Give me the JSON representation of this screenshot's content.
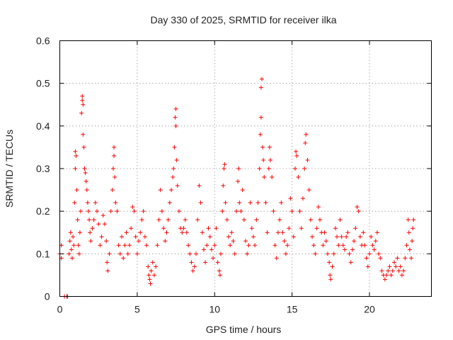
{
  "chart_data": {
    "type": "scatter",
    "title": "Day 330 of 2025, SRMTID for receiver ilka",
    "xlabel": "GPS time / hours",
    "ylabel": "SRMTID / TECUs",
    "xlim": [
      0,
      24
    ],
    "ylim": [
      0,
      0.6
    ],
    "xticks": [
      0,
      5,
      10,
      15,
      20
    ],
    "yticks": [
      0,
      0.1,
      0.2,
      0.3,
      0.4,
      0.5,
      0.6
    ],
    "xtick_labels": [
      "0",
      "5",
      "10",
      "15",
      "20"
    ],
    "ytick_labels": [
      "0",
      "0.1",
      "0.2",
      "0.3",
      "0.4",
      "0.5",
      "0.6"
    ],
    "grid": true,
    "marker": "+",
    "color": "#ff0000",
    "series": [
      {
        "name": "SRMTID",
        "points": [
          [
            0.0,
            0.1
          ],
          [
            0.1,
            0.09
          ],
          [
            0.1,
            0.12
          ],
          [
            0.3,
            0.0
          ],
          [
            0.45,
            0.0
          ],
          [
            0.5,
            0.0
          ],
          [
            0.6,
            0.1
          ],
          [
            0.65,
            0.13
          ],
          [
            0.7,
            0.15
          ],
          [
            0.75,
            0.11
          ],
          [
            0.8,
            0.09
          ],
          [
            0.85,
            0.14
          ],
          [
            0.9,
            0.12
          ],
          [
            0.95,
            0.22
          ],
          [
            1.0,
            0.3
          ],
          [
            1.0,
            0.34
          ],
          [
            1.05,
            0.33
          ],
          [
            1.1,
            0.25
          ],
          [
            1.15,
            0.18
          ],
          [
            1.2,
            0.12
          ],
          [
            1.25,
            0.1
          ],
          [
            1.3,
            0.15
          ],
          [
            1.35,
            0.2
          ],
          [
            1.4,
            0.43
          ],
          [
            1.45,
            0.47
          ],
          [
            1.45,
            0.46
          ],
          [
            1.5,
            0.45
          ],
          [
            1.5,
            0.38
          ],
          [
            1.55,
            0.35
          ],
          [
            1.6,
            0.3
          ],
          [
            1.65,
            0.29
          ],
          [
            1.7,
            0.27
          ],
          [
            1.75,
            0.25
          ],
          [
            1.8,
            0.22
          ],
          [
            1.85,
            0.2
          ],
          [
            1.9,
            0.18
          ],
          [
            1.95,
            0.15
          ],
          [
            2.0,
            0.13
          ],
          [
            2.1,
            0.16
          ],
          [
            2.2,
            0.18
          ],
          [
            2.3,
            0.22
          ],
          [
            2.4,
            0.2
          ],
          [
            2.5,
            0.17
          ],
          [
            2.6,
            0.12
          ],
          [
            2.7,
            0.14
          ],
          [
            2.8,
            0.19
          ],
          [
            2.9,
            0.17
          ],
          [
            3.0,
            0.13
          ],
          [
            3.05,
            0.08
          ],
          [
            3.1,
            0.06
          ],
          [
            3.2,
            0.1
          ],
          [
            3.3,
            0.2
          ],
          [
            3.4,
            0.25
          ],
          [
            3.45,
            0.3
          ],
          [
            3.5,
            0.35
          ],
          [
            3.5,
            0.33
          ],
          [
            3.55,
            0.28
          ],
          [
            3.6,
            0.22
          ],
          [
            3.7,
            0.2
          ],
          [
            3.8,
            0.12
          ],
          [
            3.9,
            0.1
          ],
          [
            4.0,
            0.14
          ],
          [
            4.1,
            0.09
          ],
          [
            4.2,
            0.12
          ],
          [
            4.3,
            0.15
          ],
          [
            4.4,
            0.1
          ],
          [
            4.5,
            0.12
          ],
          [
            4.6,
            0.16
          ],
          [
            4.7,
            0.21
          ],
          [
            4.8,
            0.2
          ],
          [
            4.9,
            0.14
          ],
          [
            5.0,
            0.1
          ],
          [
            5.1,
            0.13
          ],
          [
            5.2,
            0.15
          ],
          [
            5.3,
            0.18
          ],
          [
            5.4,
            0.2
          ],
          [
            5.5,
            0.14
          ],
          [
            5.6,
            0.12
          ],
          [
            5.7,
            0.07
          ],
          [
            5.75,
            0.05
          ],
          [
            5.8,
            0.04
          ],
          [
            5.85,
            0.03
          ],
          [
            5.9,
            0.06
          ],
          [
            6.0,
            0.08
          ],
          [
            6.1,
            0.05
          ],
          [
            6.2,
            0.07
          ],
          [
            6.3,
            0.12
          ],
          [
            6.4,
            0.18
          ],
          [
            6.5,
            0.25
          ],
          [
            6.6,
            0.2
          ],
          [
            6.7,
            0.16
          ],
          [
            6.8,
            0.13
          ],
          [
            6.9,
            0.15
          ],
          [
            7.0,
            0.18
          ],
          [
            7.1,
            0.22
          ],
          [
            7.2,
            0.25
          ],
          [
            7.3,
            0.28
          ],
          [
            7.35,
            0.3
          ],
          [
            7.4,
            0.35
          ],
          [
            7.45,
            0.42
          ],
          [
            7.5,
            0.44
          ],
          [
            7.5,
            0.4
          ],
          [
            7.55,
            0.32
          ],
          [
            7.6,
            0.26
          ],
          [
            7.7,
            0.2
          ],
          [
            7.8,
            0.16
          ],
          [
            7.9,
            0.15
          ],
          [
            8.0,
            0.16
          ],
          [
            8.1,
            0.18
          ],
          [
            8.2,
            0.15
          ],
          [
            8.3,
            0.12
          ],
          [
            8.4,
            0.1
          ],
          [
            8.5,
            0.08
          ],
          [
            8.6,
            0.06
          ],
          [
            8.7,
            0.07
          ],
          [
            8.8,
            0.1
          ],
          [
            8.9,
            0.18
          ],
          [
            9.0,
            0.26
          ],
          [
            9.1,
            0.22
          ],
          [
            9.2,
            0.15
          ],
          [
            9.3,
            0.11
          ],
          [
            9.4,
            0.08
          ],
          [
            9.5,
            0.12
          ],
          [
            9.6,
            0.16
          ],
          [
            9.7,
            0.14
          ],
          [
            9.8,
            0.11
          ],
          [
            9.9,
            0.09
          ],
          [
            10.0,
            0.12
          ],
          [
            10.1,
            0.16
          ],
          [
            10.2,
            0.08
          ],
          [
            10.3,
            0.06
          ],
          [
            10.35,
            0.05
          ],
          [
            10.4,
            0.1
          ],
          [
            10.5,
            0.2
          ],
          [
            10.55,
            0.26
          ],
          [
            10.6,
            0.3
          ],
          [
            10.65,
            0.31
          ],
          [
            10.7,
            0.22
          ],
          [
            10.8,
            0.18
          ],
          [
            10.9,
            0.14
          ],
          [
            11.0,
            0.12
          ],
          [
            11.1,
            0.15
          ],
          [
            11.2,
            0.13
          ],
          [
            11.3,
            0.1
          ],
          [
            11.4,
            0.2
          ],
          [
            11.5,
            0.27
          ],
          [
            11.55,
            0.3
          ],
          [
            11.6,
            0.22
          ],
          [
            11.7,
            0.2
          ],
          [
            11.8,
            0.25
          ],
          [
            11.9,
            0.18
          ],
          [
            12.0,
            0.13
          ],
          [
            12.1,
            0.1
          ],
          [
            12.2,
            0.12
          ],
          [
            12.3,
            0.22
          ],
          [
            12.4,
            0.16
          ],
          [
            12.5,
            0.14
          ],
          [
            12.6,
            0.12
          ],
          [
            12.7,
            0.18
          ],
          [
            12.8,
            0.22
          ],
          [
            12.9,
            0.3
          ],
          [
            12.95,
            0.38
          ],
          [
            13.0,
            0.42
          ],
          [
            13.0,
            0.49
          ],
          [
            13.05,
            0.51
          ],
          [
            13.1,
            0.35
          ],
          [
            13.15,
            0.32
          ],
          [
            13.2,
            0.28
          ],
          [
            13.3,
            0.22
          ],
          [
            13.4,
            0.15
          ],
          [
            13.5,
            0.3
          ],
          [
            13.55,
            0.35
          ],
          [
            13.6,
            0.32
          ],
          [
            13.7,
            0.28
          ],
          [
            13.8,
            0.2
          ],
          [
            13.9,
            0.12
          ],
          [
            14.0,
            0.09
          ],
          [
            14.1,
            0.15
          ],
          [
            14.2,
            0.18
          ],
          [
            14.3,
            0.22
          ],
          [
            14.4,
            0.15
          ],
          [
            14.5,
            0.13
          ],
          [
            14.6,
            0.1
          ],
          [
            14.7,
            0.12
          ],
          [
            14.8,
            0.16
          ],
          [
            14.9,
            0.23
          ],
          [
            15.0,
            0.2
          ],
          [
            15.1,
            0.14
          ],
          [
            15.2,
            0.3
          ],
          [
            15.25,
            0.34
          ],
          [
            15.3,
            0.33
          ],
          [
            15.4,
            0.28
          ],
          [
            15.5,
            0.2
          ],
          [
            15.6,
            0.16
          ],
          [
            15.7,
            0.23
          ],
          [
            15.8,
            0.3
          ],
          [
            15.85,
            0.36
          ],
          [
            15.9,
            0.38
          ],
          [
            16.0,
            0.32
          ],
          [
            16.1,
            0.25
          ],
          [
            16.2,
            0.18
          ],
          [
            16.3,
            0.14
          ],
          [
            16.4,
            0.12
          ],
          [
            16.5,
            0.1
          ],
          [
            16.6,
            0.16
          ],
          [
            16.7,
            0.21
          ],
          [
            16.8,
            0.18
          ],
          [
            16.9,
            0.15
          ],
          [
            17.0,
            0.12
          ],
          [
            17.1,
            0.15
          ],
          [
            17.2,
            0.13
          ],
          [
            17.3,
            0.1
          ],
          [
            17.4,
            0.08
          ],
          [
            17.45,
            0.05
          ],
          [
            17.5,
            0.04
          ],
          [
            17.6,
            0.07
          ],
          [
            17.7,
            0.1
          ],
          [
            17.8,
            0.16
          ],
          [
            17.9,
            0.14
          ],
          [
            18.0,
            0.12
          ],
          [
            18.1,
            0.18
          ],
          [
            18.2,
            0.14
          ],
          [
            18.3,
            0.12
          ],
          [
            18.4,
            0.11
          ],
          [
            18.5,
            0.14
          ],
          [
            18.6,
            0.15
          ],
          [
            18.7,
            0.1
          ],
          [
            18.8,
            0.08
          ],
          [
            18.9,
            0.11
          ],
          [
            19.0,
            0.13
          ],
          [
            19.1,
            0.16
          ],
          [
            19.2,
            0.21
          ],
          [
            19.3,
            0.2
          ],
          [
            19.4,
            0.14
          ],
          [
            19.5,
            0.12
          ],
          [
            19.6,
            0.15
          ],
          [
            19.7,
            0.12
          ],
          [
            19.8,
            0.09
          ],
          [
            19.9,
            0.07
          ],
          [
            20.0,
            0.1
          ],
          [
            20.1,
            0.14
          ],
          [
            20.2,
            0.12
          ],
          [
            20.3,
            0.11
          ],
          [
            20.4,
            0.13
          ],
          [
            20.5,
            0.15
          ],
          [
            20.6,
            0.1
          ],
          [
            20.7,
            0.09
          ],
          [
            20.8,
            0.06
          ],
          [
            20.9,
            0.05
          ],
          [
            21.0,
            0.04
          ],
          [
            21.1,
            0.05
          ],
          [
            21.2,
            0.06
          ],
          [
            21.3,
            0.07
          ],
          [
            21.4,
            0.05
          ],
          [
            21.5,
            0.06
          ],
          [
            21.6,
            0.08
          ],
          [
            21.7,
            0.07
          ],
          [
            21.8,
            0.09
          ],
          [
            21.9,
            0.06
          ],
          [
            22.0,
            0.07
          ],
          [
            22.1,
            0.05
          ],
          [
            22.2,
            0.06
          ],
          [
            22.3,
            0.09
          ],
          [
            22.4,
            0.12
          ],
          [
            22.5,
            0.18
          ],
          [
            22.55,
            0.15
          ],
          [
            22.6,
            0.11
          ],
          [
            22.7,
            0.09
          ],
          [
            22.75,
            0.13
          ],
          [
            22.8,
            0.16
          ],
          [
            22.85,
            0.18
          ]
        ]
      }
    ]
  }
}
